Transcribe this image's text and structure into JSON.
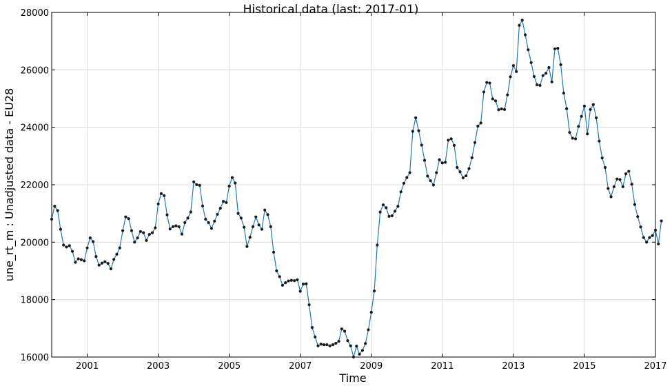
{
  "chart_data": {
    "type": "line",
    "title": "Historical data (last: 2017-01)",
    "xlabel": "Time",
    "ylabel": "une_rt_m : Unadjusted data - EU28",
    "xlim": [
      2000,
      2017
    ],
    "ylim": [
      16000,
      28000
    ],
    "x_ticks": [
      2001,
      2003,
      2005,
      2007,
      2009,
      2011,
      2013,
      2015,
      2017
    ],
    "y_ticks": [
      16000,
      18000,
      20000,
      22000,
      24000,
      26000,
      28000
    ],
    "grid": true,
    "colors": {
      "line": "#1f77b4",
      "marker": "#1a1a1a",
      "grid": "#dcdcdc",
      "axis": "#000000"
    },
    "series": [
      {
        "start": "2000-01",
        "frequency": "monthly",
        "values": [
          20800,
          21250,
          21100,
          20450,
          19900,
          19830,
          19880,
          19680,
          19300,
          19420,
          19390,
          19350,
          19800,
          20150,
          20020,
          19500,
          19200,
          19270,
          19320,
          19260,
          19070,
          19400,
          19580,
          19800,
          20400,
          20880,
          20820,
          20400,
          20000,
          20150,
          20370,
          20330,
          20060,
          20270,
          20330,
          20500,
          21330,
          21690,
          21620,
          20950,
          20460,
          20540,
          20570,
          20540,
          20280,
          20680,
          20840,
          21050,
          22100,
          22000,
          21980,
          21260,
          20800,
          20680,
          20480,
          20730,
          20970,
          21180,
          21420,
          21380,
          21950,
          22250,
          22060,
          21000,
          20840,
          20520,
          19850,
          20170,
          20540,
          20880,
          20600,
          20450,
          21120,
          20960,
          20540,
          19650,
          19000,
          18800,
          18500,
          18590,
          18650,
          18670,
          18660,
          18690,
          18290,
          18540,
          18550,
          17820,
          17030,
          16700,
          16390,
          16450,
          16430,
          16430,
          16390,
          16430,
          16480,
          16550,
          16980,
          16900,
          16570,
          16390,
          16000,
          16380,
          16100,
          16230,
          16470,
          16950,
          17560,
          18300,
          19900,
          21050,
          21300,
          21200,
          20900,
          20920,
          21080,
          21250,
          21750,
          22050,
          22250,
          22420,
          23860,
          24330,
          23880,
          23380,
          22850,
          22300,
          22140,
          21990,
          22420,
          22870,
          22760,
          22780,
          23550,
          23600,
          23370,
          22600,
          22450,
          22240,
          22310,
          22560,
          22940,
          23470,
          24040,
          24150,
          25230,
          25560,
          25540,
          24990,
          24920,
          24610,
          24640,
          24620,
          25130,
          25760,
          26150,
          25940,
          27550,
          27730,
          27220,
          26700,
          26250,
          25770,
          25480,
          25460,
          25800,
          25880,
          26080,
          25580,
          26730,
          26750,
          26180,
          25190,
          24650,
          23820,
          23620,
          23600,
          24030,
          24380,
          24740,
          23770,
          24620,
          24790,
          24330,
          23520,
          22930,
          22600,
          21870,
          21580,
          21930,
          22200,
          22180,
          21930,
          22380,
          22470,
          22020,
          21310,
          20890,
          20530,
          20160,
          20000,
          20160,
          20230,
          20420,
          19940,
          20740
        ]
      }
    ]
  }
}
